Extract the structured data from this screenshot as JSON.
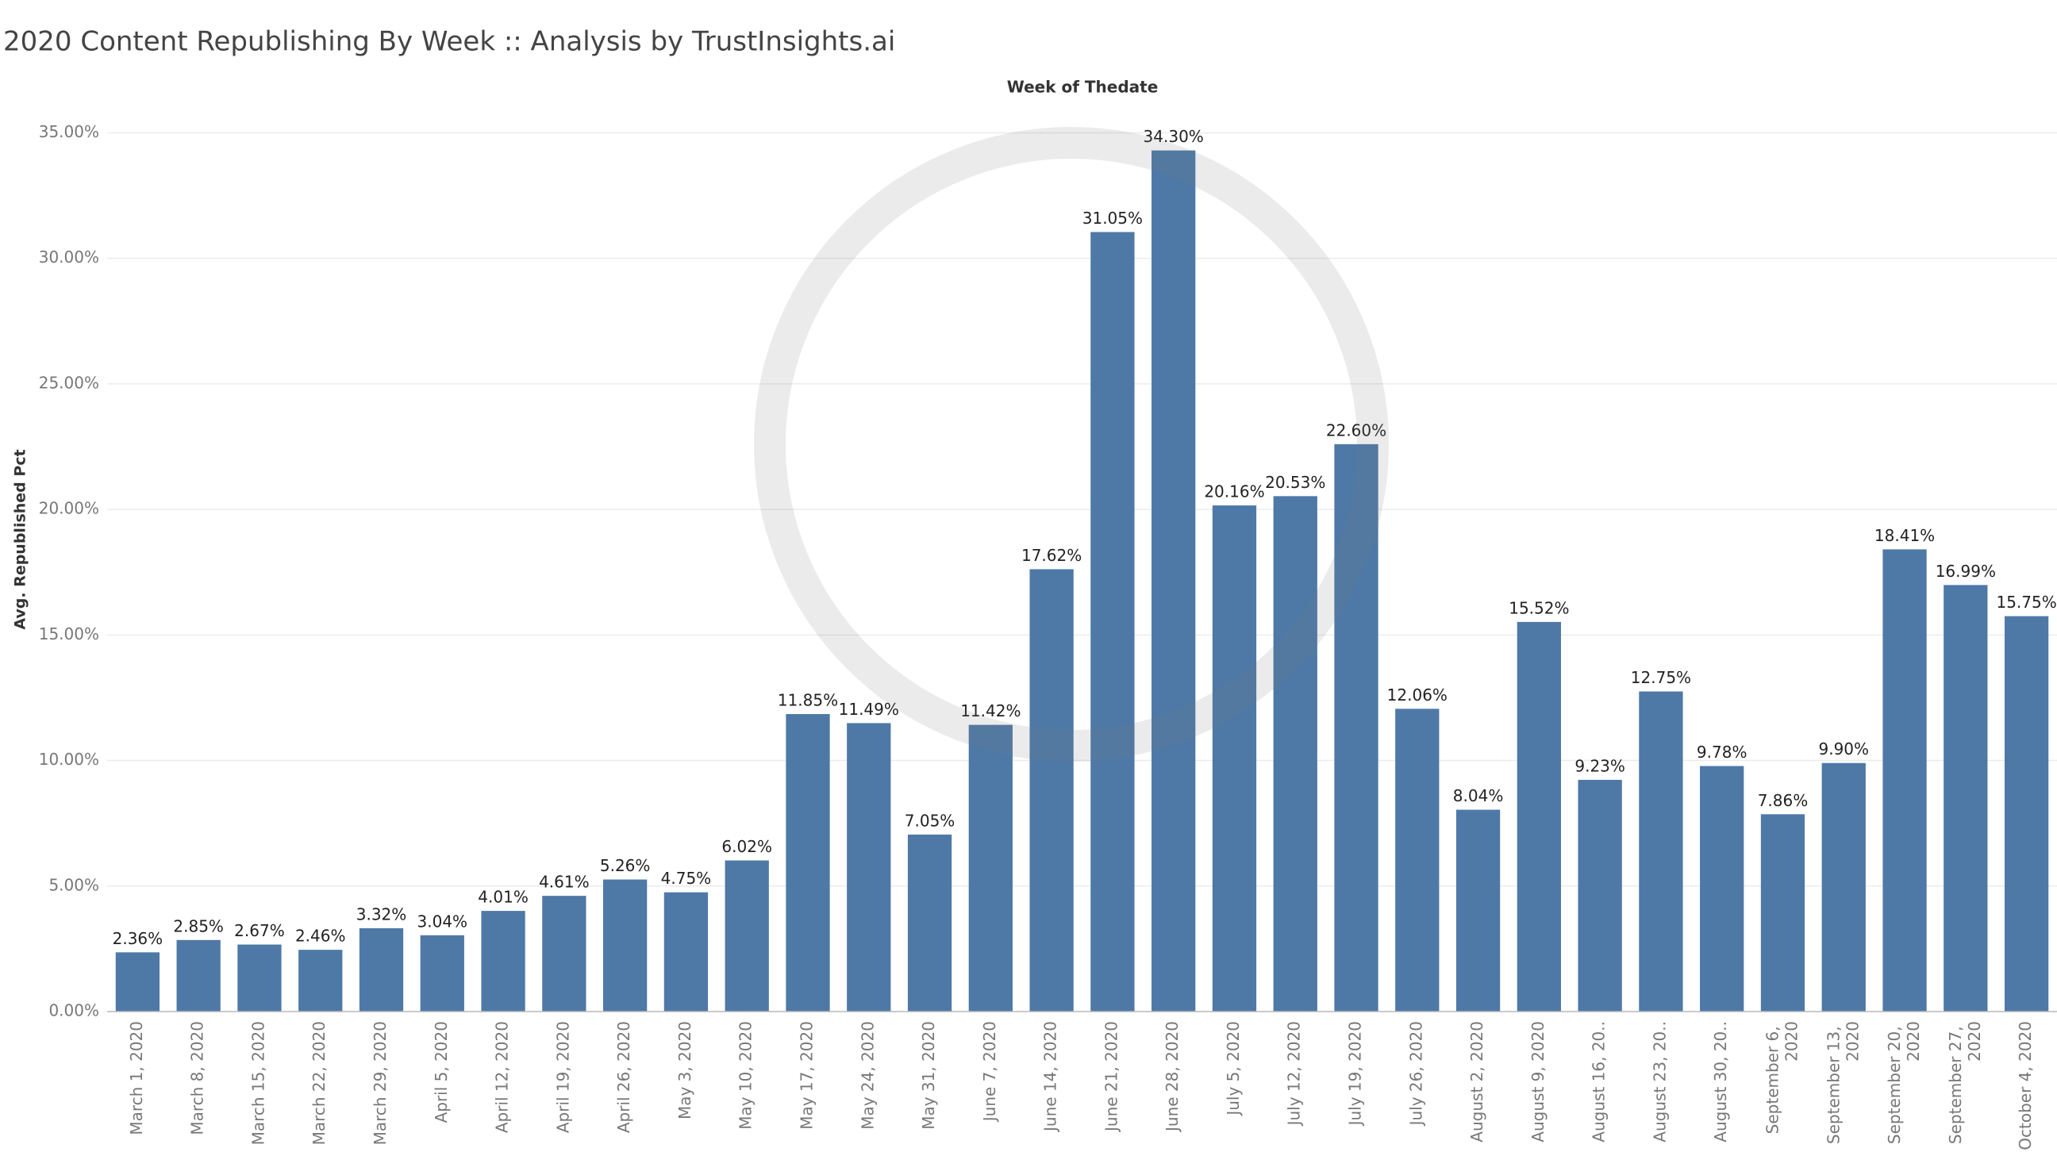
{
  "chart_data": {
    "type": "bar",
    "title": "2020 Content Republishing By Week :: Analysis by TrustInsights.ai",
    "x_label": "Week of Thedate",
    "y_label": "Avg. Republished Pct",
    "categories": [
      "March 1, 2020",
      "March 8, 2020",
      "March 15, 2020",
      "March 22, 2020",
      "March 29, 2020",
      "April 5, 2020",
      "April 12, 2020",
      "April 19, 2020",
      "April 26, 2020",
      "May 3, 2020",
      "May 10, 2020",
      "May 17, 2020",
      "May 24, 2020",
      "May 31, 2020",
      "June 7, 2020",
      "June 14, 2020",
      "June 21, 2020",
      "June 28, 2020",
      "July 5, 2020",
      "July 12, 2020",
      "July 19, 2020",
      "July 26, 2020",
      "August 2, 2020",
      "August 9, 2020",
      "August 16, 20..",
      "August 23, 20..",
      "August 30, 20..",
      "September 6, 2020",
      "September 13, 2020",
      "September 20, 2020",
      "September 27, 2020",
      "October 4, 2020"
    ],
    "values": [
      2.36,
      2.85,
      2.67,
      2.46,
      3.32,
      3.04,
      4.01,
      4.61,
      5.26,
      4.75,
      6.02,
      11.85,
      11.49,
      7.05,
      11.42,
      17.62,
      31.05,
      34.3,
      20.16,
      20.53,
      22.6,
      12.06,
      8.04,
      15.52,
      9.23,
      12.75,
      9.78,
      7.86,
      9.9,
      18.41,
      16.99,
      15.75
    ],
    "value_labels": [
      "2.36%",
      "2.85%",
      "2.67%",
      "2.46%",
      "3.32%",
      "3.04%",
      "4.01%",
      "4.61%",
      "5.26%",
      "4.75%",
      "6.02%",
      "11.85%",
      "11.49%",
      "7.05%",
      "11.42%",
      "17.62%",
      "31.05%",
      "34.30%",
      "20.16%",
      "20.53%",
      "22.60%",
      "12.06%",
      "8.04%",
      "15.52%",
      "9.23%",
      "12.75%",
      "9.78%",
      "7.86%",
      "9.90%",
      "18.41%",
      "16.99%",
      "15.75%"
    ],
    "color": "#4e79a7",
    "ylim": [
      0,
      36.5
    ],
    "yticks": [
      {
        "value": 0,
        "label": "0.00%"
      },
      {
        "value": 5,
        "label": "5.00%"
      },
      {
        "value": 10,
        "label": "10.00%"
      },
      {
        "value": 15,
        "label": "15.00%"
      },
      {
        "value": 20,
        "label": "20.00%"
      },
      {
        "value": 25,
        "label": "25.00%"
      },
      {
        "value": 30,
        "label": "30.00%"
      },
      {
        "value": 35,
        "label": "35.00%"
      }
    ],
    "grid": true
  }
}
